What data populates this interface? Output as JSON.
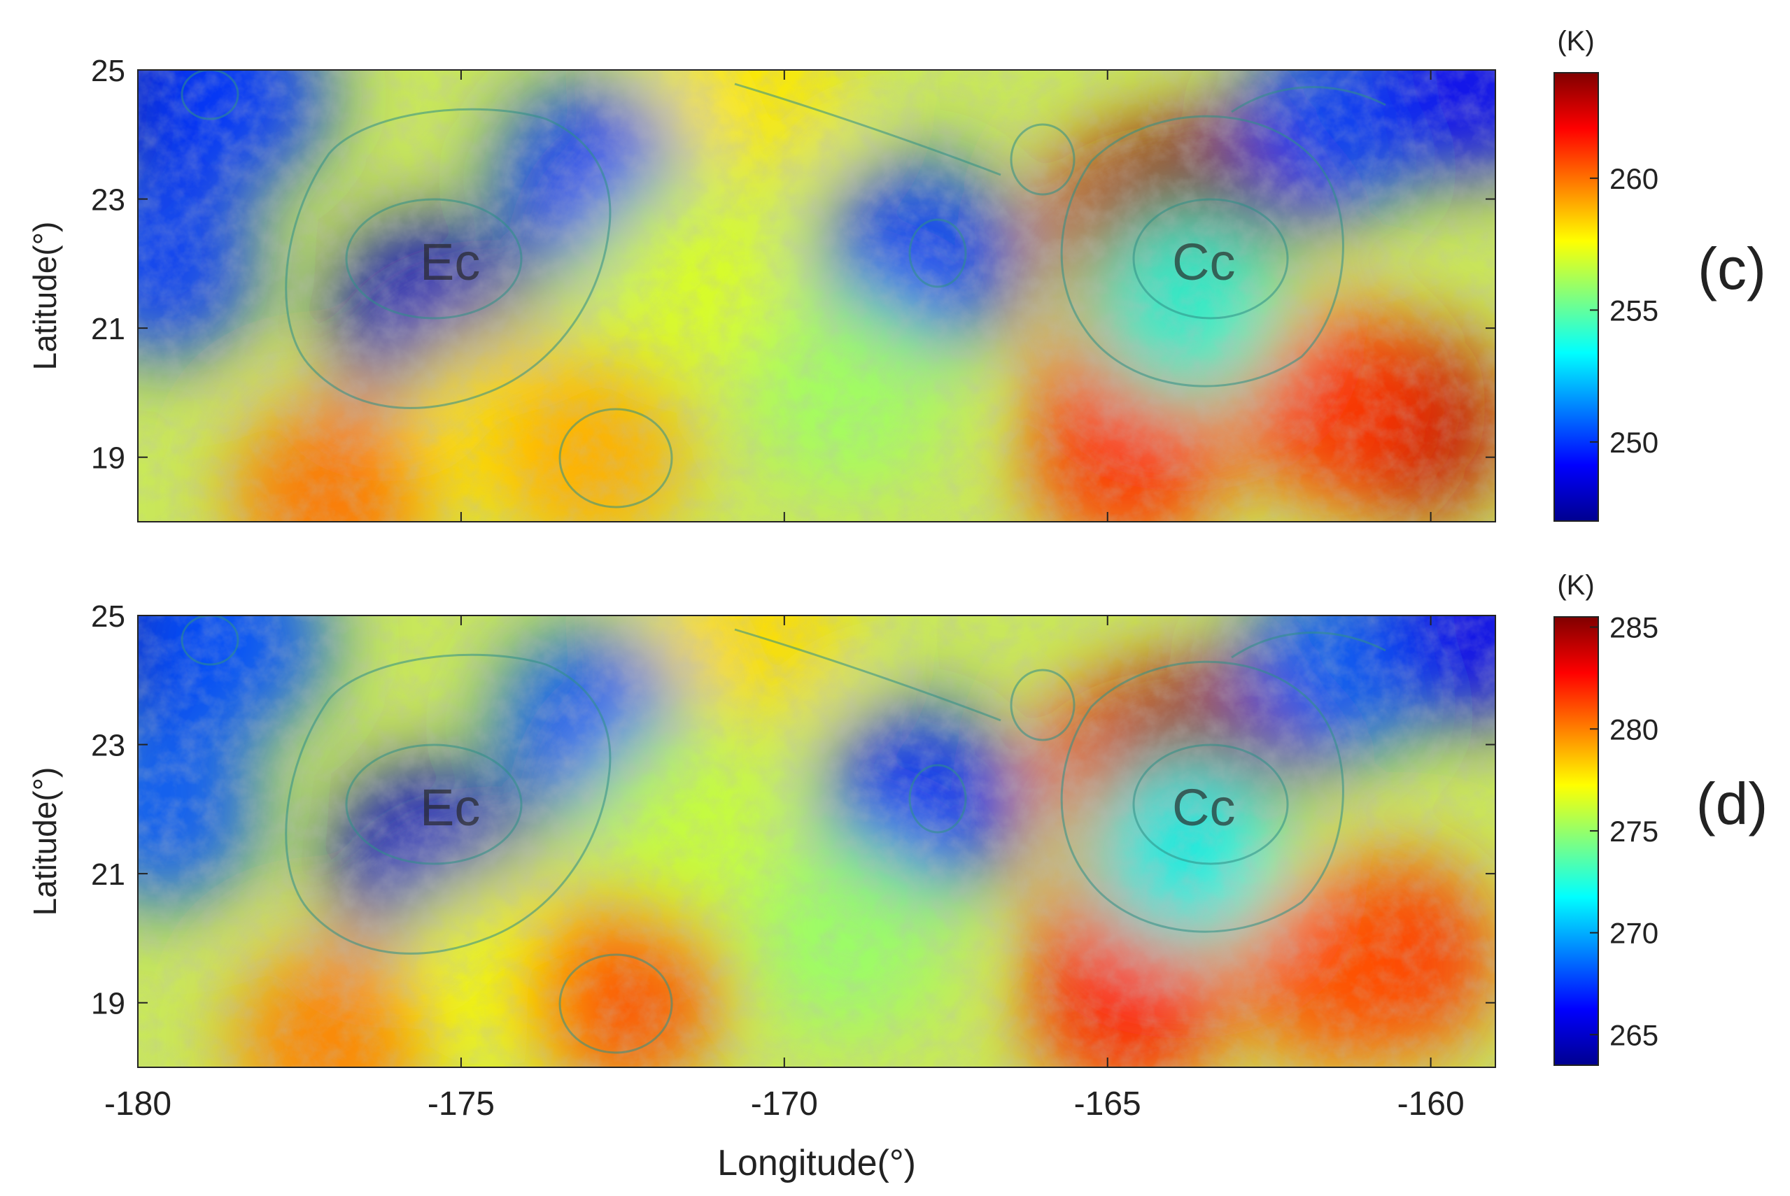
{
  "figure": {
    "xlabel": "Longitude(°)",
    "ylabel": "Latitude(°)",
    "colormap": "jet",
    "xticks": [
      -180,
      -175,
      -170,
      -165,
      -160
    ],
    "xlim": [
      -180,
      -159
    ],
    "yticks": [
      19,
      21,
      23,
      25
    ],
    "ylim": [
      18,
      25
    ]
  },
  "chart_data": [
    {
      "type": "heatmap",
      "panel_label": "(c)",
      "unit": "(K)",
      "xlabel": "",
      "ylabel": "Latitude(°)",
      "xlim": [
        -180,
        -159
      ],
      "ylim": [
        18,
        25
      ],
      "yticks": [
        19,
        21,
        23,
        25
      ],
      "clim": [
        247,
        264
      ],
      "colorbar_ticks": [
        250,
        255,
        260
      ],
      "background": "shaded-relief lunar surface map with geologic unit outlines",
      "map_annotations": [
        "Ec",
        "Cc"
      ],
      "features": [
        {
          "lon": -164.5,
          "lat": 22.5,
          "value": 263
        },
        {
          "lon": -163.5,
          "lat": 22.8,
          "value": 264
        },
        {
          "lon": -164.5,
          "lat": 20.2,
          "value": 262
        },
        {
          "lon": -160.3,
          "lat": 19.5,
          "value": 263
        },
        {
          "lon": -161.5,
          "lat": 19.8,
          "value": 261
        },
        {
          "lon": -164.7,
          "lat": 19.0,
          "value": 261
        },
        {
          "lon": -163.8,
          "lat": 21.3,
          "value": 254
        },
        {
          "lon": -179.7,
          "lat": 24.8,
          "value": 248
        },
        {
          "lon": -178.5,
          "lat": 24.6,
          "value": 250
        },
        {
          "lon": -173.0,
          "lat": 23.3,
          "value": 250
        },
        {
          "lon": -175.5,
          "lat": 21.2,
          "value": 248
        },
        {
          "lon": -179.6,
          "lat": 22.0,
          "value": 250
        },
        {
          "lon": -167.9,
          "lat": 22.1,
          "value": 250
        },
        {
          "lon": -161.5,
          "lat": 24.2,
          "value": 250
        },
        {
          "lon": -159.3,
          "lat": 24.8,
          "value": 249
        },
        {
          "lon": -170.5,
          "lat": 24.9,
          "value": 258
        },
        {
          "lon": -174.5,
          "lat": 19.5,
          "value": 258
        },
        {
          "lon": -177.0,
          "lat": 18.4,
          "value": 260
        },
        {
          "lon": -173.0,
          "lat": 19.0,
          "value": 259
        },
        {
          "lon": -171.5,
          "lat": 21.8,
          "value": 257
        },
        {
          "lon": -169.0,
          "lat": 20.0,
          "value": 256
        }
      ]
    },
    {
      "type": "heatmap",
      "panel_label": "(d)",
      "unit": "(K)",
      "xlabel": "Longitude(°)",
      "ylabel": "Latitude(°)",
      "xlim": [
        -180,
        -159
      ],
      "ylim": [
        18,
        25
      ],
      "xticks": [
        -180,
        -175,
        -170,
        -165,
        -160
      ],
      "yticks": [
        19,
        21,
        23,
        25
      ],
      "clim": [
        263.5,
        285.5
      ],
      "colorbar_ticks": [
        265,
        270,
        275,
        280,
        285
      ],
      "background": "shaded-relief lunar surface map with geologic unit outlines",
      "map_annotations": [
        "Ec",
        "Cc"
      ],
      "features": [
        {
          "lon": -164.5,
          "lat": 22.5,
          "value": 283
        },
        {
          "lon": -163.5,
          "lat": 22.8,
          "value": 285
        },
        {
          "lon": -164.5,
          "lat": 20.2,
          "value": 283
        },
        {
          "lon": -160.5,
          "lat": 19.7,
          "value": 282
        },
        {
          "lon": -161.5,
          "lat": 19.5,
          "value": 281
        },
        {
          "lon": -164.7,
          "lat": 19.0,
          "value": 282
        },
        {
          "lon": -163.8,
          "lat": 21.3,
          "value": 272
        },
        {
          "lon": -179.7,
          "lat": 24.8,
          "value": 265
        },
        {
          "lon": -178.5,
          "lat": 24.6,
          "value": 268
        },
        {
          "lon": -173.0,
          "lat": 23.3,
          "value": 268
        },
        {
          "lon": -175.5,
          "lat": 21.2,
          "value": 265
        },
        {
          "lon": -179.6,
          "lat": 22.0,
          "value": 268
        },
        {
          "lon": -167.9,
          "lat": 22.1,
          "value": 267
        },
        {
          "lon": -161.5,
          "lat": 24.2,
          "value": 268
        },
        {
          "lon": -159.3,
          "lat": 24.8,
          "value": 266
        },
        {
          "lon": -170.5,
          "lat": 24.9,
          "value": 278
        },
        {
          "lon": -174.5,
          "lat": 19.5,
          "value": 277
        },
        {
          "lon": -177.0,
          "lat": 18.4,
          "value": 280
        },
        {
          "lon": -172.5,
          "lat": 19.1,
          "value": 281
        },
        {
          "lon": -171.5,
          "lat": 21.8,
          "value": 276
        },
        {
          "lon": -169.0,
          "lat": 20.0,
          "value": 275
        }
      ]
    }
  ]
}
